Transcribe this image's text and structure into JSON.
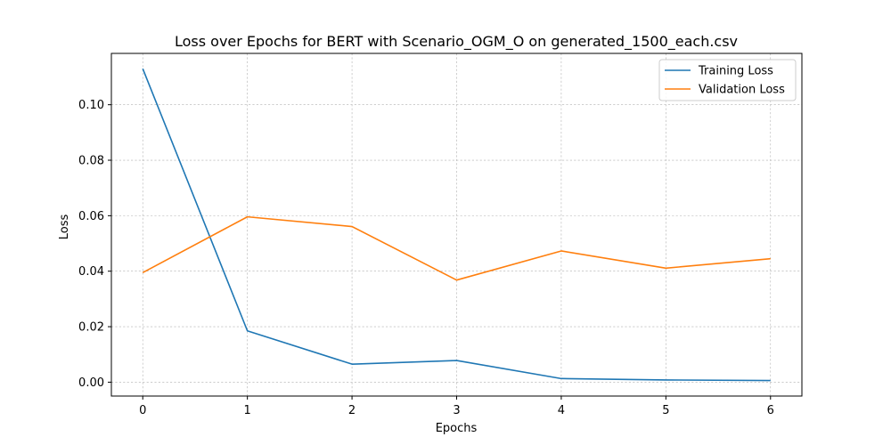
{
  "chart_data": {
    "type": "line",
    "title": "Loss over Epochs for BERT with Scenario_OGM_O on generated_1500_each.csv",
    "xlabel": "Epochs",
    "ylabel": "Loss",
    "x": [
      0,
      1,
      2,
      3,
      4,
      5,
      6
    ],
    "xlim": [
      -0.3,
      6.3
    ],
    "ylim": [
      -0.005,
      0.1185
    ],
    "xticks": [
      "0",
      "1",
      "2",
      "3",
      "4",
      "5",
      "6"
    ],
    "yticks": [
      {
        "value": 0.0,
        "label": "0.00"
      },
      {
        "value": 0.02,
        "label": "0.02"
      },
      {
        "value": 0.04,
        "label": "0.04"
      },
      {
        "value": 0.06,
        "label": "0.06"
      },
      {
        "value": 0.08,
        "label": "0.08"
      },
      {
        "value": 0.1,
        "label": "0.10"
      }
    ],
    "grid": true,
    "legend_position": "top-right",
    "series": [
      {
        "name": "Training Loss",
        "color": "#1f77b4",
        "values": [
          0.113,
          0.0185,
          0.0065,
          0.0078,
          0.0013,
          0.0008,
          0.0006
        ]
      },
      {
        "name": "Validation Loss",
        "color": "#ff7f0e",
        "values": [
          0.0395,
          0.0596,
          0.0561,
          0.0368,
          0.0473,
          0.0411,
          0.0445
        ]
      }
    ]
  }
}
